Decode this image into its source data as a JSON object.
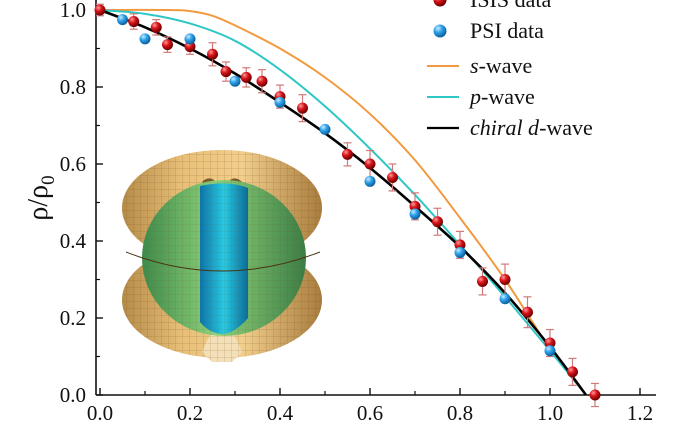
{
  "chart_data": {
    "type": "line",
    "title": "",
    "xlabel": "",
    "ylabel": "ρ/ρ",
    "ylabel_subscript": "0",
    "xlim": [
      0.0,
      1.2
    ],
    "ylim": [
      0.0,
      1.0
    ],
    "xticks": [
      "0.0",
      "0.2",
      "0.4",
      "0.6",
      "0.8",
      "1.0",
      "1.2"
    ],
    "yticks": [
      "0.0",
      "0.2",
      "0.4",
      "0.6",
      "0.8",
      "1.0"
    ],
    "grid": false,
    "legend_position": "top-right",
    "series": [
      {
        "name": "ISIS data",
        "kind": "scatter",
        "color": "#c8151b",
        "x": [
          0.0,
          0.075,
          0.125,
          0.15,
          0.2,
          0.25,
          0.28,
          0.325,
          0.36,
          0.4,
          0.45,
          0.55,
          0.6,
          0.65,
          0.7,
          0.75,
          0.8,
          0.85,
          0.9,
          0.95,
          1.0,
          1.05,
          1.1
        ],
        "y": [
          1.0,
          0.97,
          0.955,
          0.91,
          0.905,
          0.885,
          0.84,
          0.825,
          0.815,
          0.775,
          0.745,
          0.625,
          0.6,
          0.565,
          0.49,
          0.45,
          0.39,
          0.295,
          0.3,
          0.215,
          0.135,
          0.06,
          0.0
        ],
        "err": [
          0.015,
          0.02,
          0.02,
          0.02,
          0.02,
          0.03,
          0.025,
          0.025,
          0.03,
          0.03,
          0.035,
          0.03,
          0.035,
          0.035,
          0.035,
          0.035,
          0.035,
          0.035,
          0.04,
          0.04,
          0.035,
          0.035,
          0.03
        ]
      },
      {
        "name": "PSI data",
        "kind": "scatter",
        "color": "#36a7ea",
        "x": [
          0.05,
          0.1,
          0.2,
          0.3,
          0.4,
          0.5,
          0.6,
          0.7,
          0.8,
          0.9,
          1.0
        ],
        "y": [
          0.975,
          0.925,
          0.925,
          0.815,
          0.76,
          0.69,
          0.555,
          0.47,
          0.37,
          0.25,
          0.115
        ],
        "err": []
      },
      {
        "name": "s-wave",
        "name_italic": "s",
        "name_rest": "-wave",
        "kind": "line",
        "color": "#f29a3f",
        "x": [
          0.0,
          0.15,
          0.2,
          0.25,
          0.3,
          0.4,
          0.5,
          0.6,
          0.7,
          0.8,
          0.9,
          1.0,
          1.08
        ],
        "y": [
          1.0,
          1.0,
          0.997,
          0.985,
          0.96,
          0.9,
          0.825,
          0.73,
          0.61,
          0.46,
          0.3,
          0.12,
          0.0
        ]
      },
      {
        "name": "p-wave",
        "name_italic": "p",
        "name_rest": "-wave",
        "kind": "line",
        "color": "#2fc6c6",
        "x": [
          0.0,
          0.1,
          0.2,
          0.3,
          0.4,
          0.5,
          0.6,
          0.7,
          0.8,
          0.9,
          1.0,
          1.08
        ],
        "y": [
          1.0,
          0.99,
          0.965,
          0.92,
          0.845,
          0.75,
          0.64,
          0.52,
          0.39,
          0.255,
          0.115,
          0.0
        ]
      },
      {
        "name": "chiral d-wave",
        "name_italic": "chiral d",
        "name_rest": "-wave",
        "kind": "line",
        "color": "#000000",
        "x": [
          0.0,
          0.1,
          0.2,
          0.3,
          0.4,
          0.5,
          0.6,
          0.7,
          0.8,
          0.9,
          1.0,
          1.08
        ],
        "y": [
          1.0,
          0.955,
          0.9,
          0.835,
          0.76,
          0.68,
          0.59,
          0.49,
          0.385,
          0.265,
          0.125,
          0.0
        ]
      }
    ],
    "legend_entries": [
      "ISIS data",
      "PSI data",
      "s-wave",
      "p-wave",
      "chiral d-wave"
    ]
  },
  "inset": {
    "description_icon": "gap-3d-surface-icon"
  },
  "colors": {
    "axis": "#111111",
    "error_bar": "#d07a7a"
  }
}
